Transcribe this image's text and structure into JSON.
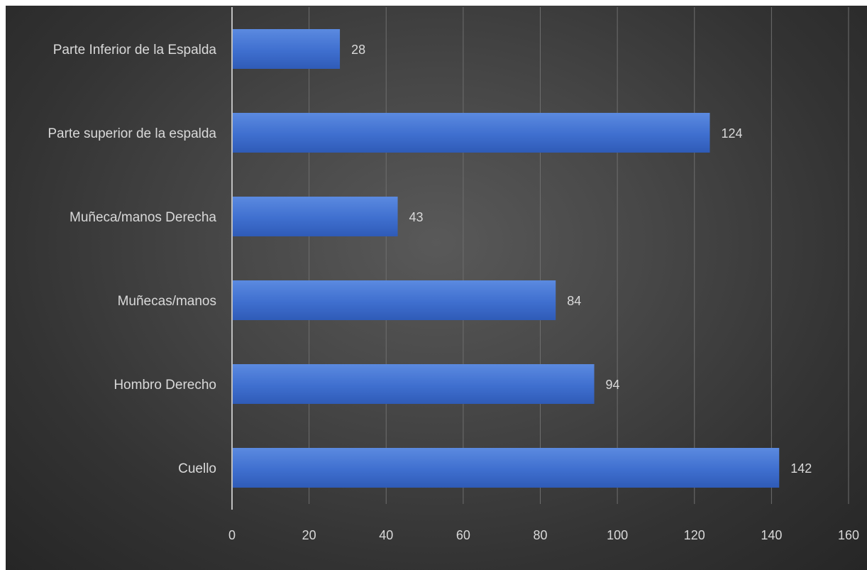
{
  "chart_data": {
    "type": "bar",
    "orientation": "horizontal",
    "title": "",
    "xlabel": "",
    "ylabel": "",
    "categories": [
      "Parte Inferior de la Espalda",
      "Parte superior de la espalda",
      "Muñeca/manos Derecha",
      "Muñecas/manos",
      "Hombro Derecho",
      "Cuello"
    ],
    "values": [
      28,
      124,
      43,
      84,
      94,
      142
    ],
    "xlim": [
      0,
      160
    ],
    "xticks": [
      "0",
      "20",
      "40",
      "60",
      "80",
      "100",
      "120",
      "140",
      "160"
    ],
    "grid": "vertical",
    "legend": "none",
    "colors": {
      "bar": "#3f6fcf",
      "bar_light": "#5b8ae0",
      "bar_dark": "#2f5bb7",
      "gridline": "#6e6e6e",
      "axis": "#bfbfbf",
      "text": "#d9d9d9"
    }
  }
}
